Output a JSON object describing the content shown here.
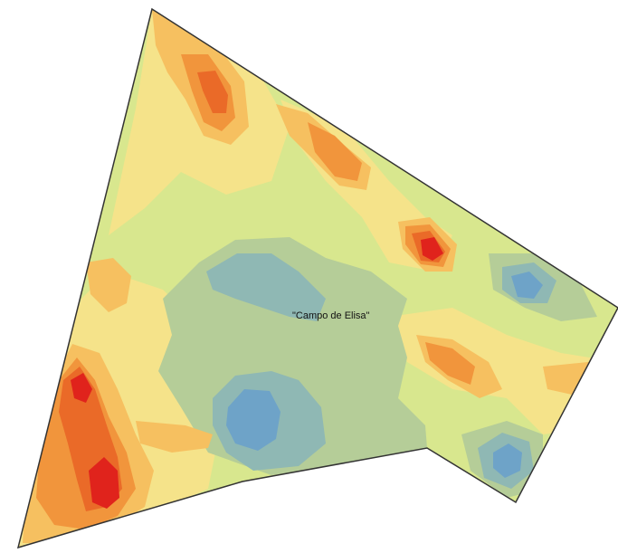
{
  "map": {
    "field_label": "\"Campo de Elisa\"",
    "zone_colors": {
      "class_1_deep_blue": "#6ea3c8",
      "class_2_teal": "#8fb8b4",
      "class_3_sage": "#b5cd98",
      "class_4_pale_green": "#d8e78e",
      "class_5_yellow": "#f5e38a",
      "class_6_light_orange": "#f6c060",
      "class_7_orange": "#f1953c",
      "class_8_dark_orange": "#ea6a28",
      "class_9_red": "#e0231c"
    },
    "boundary_color": "#333333"
  }
}
